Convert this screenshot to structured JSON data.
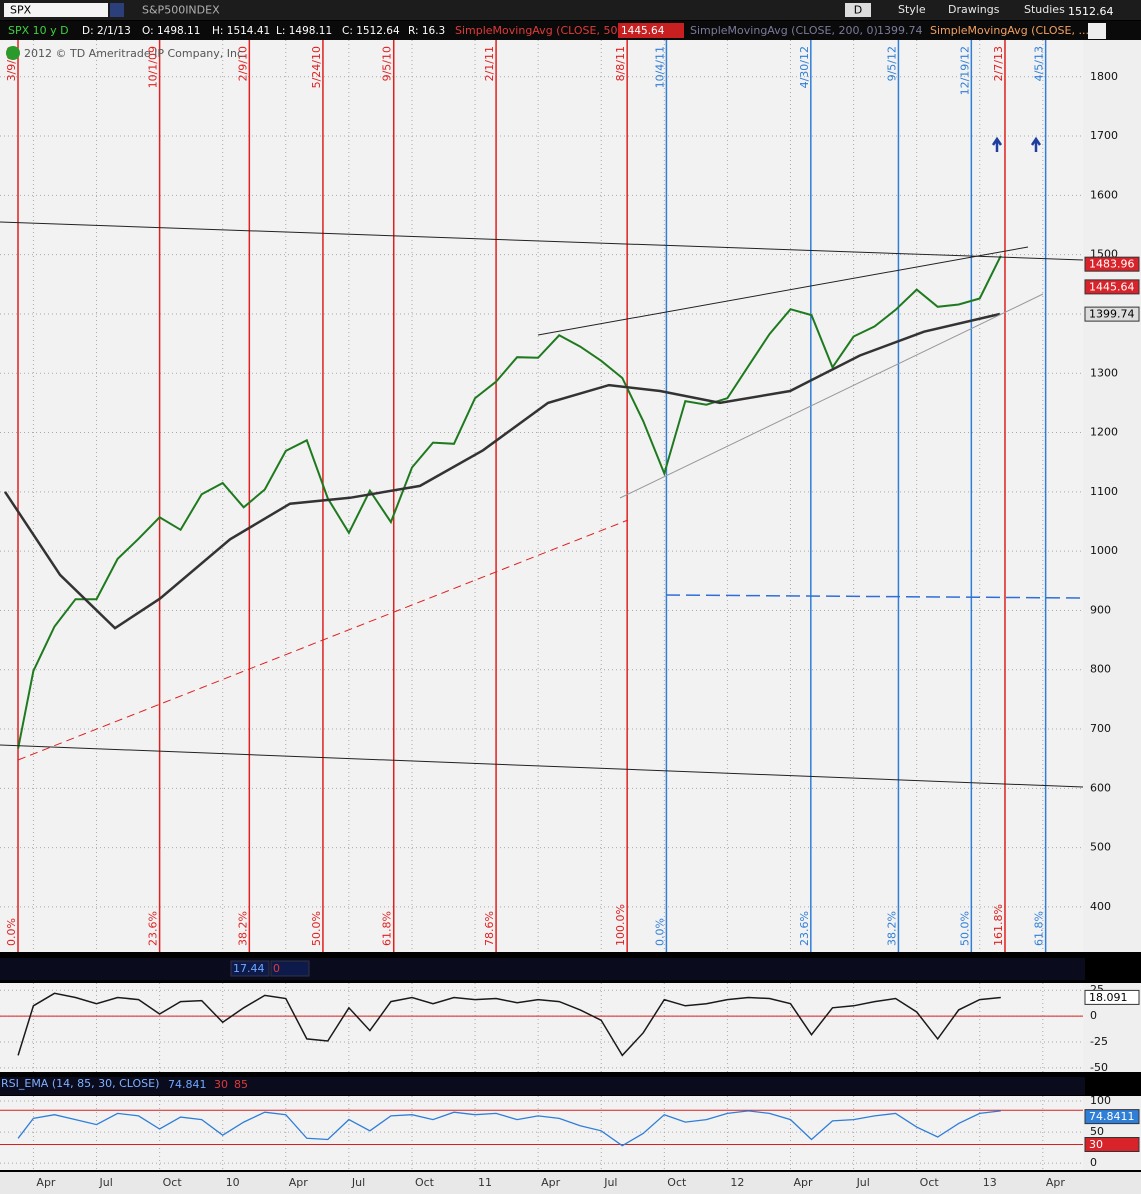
{
  "toolbar": {
    "symbol": "SPX",
    "description": "S&P500INDEX",
    "aggregation": "D",
    "style": "Style",
    "drawings": "Drawings",
    "studies": "Studies",
    "last": "1512.64"
  },
  "info_bar": {
    "chart": "SPX 10 y D",
    "date": "D: 2/1/13",
    "open": "O: 1498.11",
    "high": "H: 1514.41",
    "low": "L: 1498.11",
    "close": "C: 1512.64",
    "range": "R: 16.3",
    "studies": [
      {
        "name": "SimpleMovingAvg (CLOSE, 50, 0)",
        "value": "1445.64"
      },
      {
        "name": "SimpleMovingAvg (CLOSE, 200, 0)",
        "value": "1399.74"
      },
      {
        "name": "SimpleMovingAvg (CLOSE, ..."
      }
    ]
  },
  "copyright": "2012 © TD Ameritrade IP Company, Inc.",
  "time_axis": {
    "xlim": [
      1.41,
      52.91
    ],
    "xticks": [
      {
        "value": 3,
        "label": "Apr"
      },
      {
        "value": 6,
        "label": "Jul"
      },
      {
        "value": 9,
        "label": "Oct"
      },
      {
        "value": 12,
        "label": "10"
      },
      {
        "value": 15,
        "label": "Apr"
      },
      {
        "value": 18,
        "label": "Jul"
      },
      {
        "value": 21,
        "label": "Oct"
      },
      {
        "value": 24,
        "label": "11"
      },
      {
        "value": 27,
        "label": "Apr"
      },
      {
        "value": 30,
        "label": "Jul"
      },
      {
        "value": 33,
        "label": "Oct"
      },
      {
        "value": 36,
        "label": "12"
      },
      {
        "value": 39,
        "label": "Apr"
      },
      {
        "value": 42,
        "label": "Jul"
      },
      {
        "value": 45,
        "label": "Oct"
      },
      {
        "value": 48,
        "label": "13"
      },
      {
        "value": 51,
        "label": "Apr"
      }
    ],
    "x": [
      2.27,
      3,
      4,
      5,
      6,
      7,
      8,
      9,
      10,
      11,
      12,
      13,
      14,
      15,
      16,
      17,
      18,
      19,
      20,
      21,
      22,
      23,
      24,
      25,
      26,
      27,
      28,
      29,
      30,
      31,
      32,
      33,
      34,
      35,
      36,
      37,
      38,
      39,
      40,
      41,
      42,
      43,
      44,
      45,
      46,
      47,
      48,
      49
    ]
  },
  "price_panel": {
    "ylim": [
      324,
      1862
    ],
    "yticks": [
      400,
      500,
      600,
      700,
      800,
      900,
      1000,
      1100,
      1200,
      1300,
      1400,
      1500,
      1600,
      1700,
      1800
    ],
    "close": {
      "color": "#1f7a1f",
      "values": [
        667,
        798,
        873,
        919,
        919,
        987,
        1021,
        1057,
        1036,
        1096,
        1115,
        1074,
        1104,
        1169,
        1187,
        1089,
        1031,
        1102,
        1049,
        1141,
        1183,
        1181,
        1258,
        1286,
        1327,
        1326,
        1364,
        1345,
        1321,
        1292,
        1219,
        1131,
        1253,
        1247,
        1258,
        1312,
        1366,
        1408,
        1398,
        1310,
        1362,
        1379,
        1407,
        1441,
        1412,
        1416,
        1426,
        1498
      ]
    },
    "sma200": {
      "color": "#333333",
      "x": [
        1.65,
        4.27,
        6.88,
        9.02,
        12.35,
        15.2,
        18.05,
        21.38,
        24.38,
        27.47,
        30.37,
        32.8,
        35.65,
        38.98,
        42.3,
        45.35,
        48.96
      ],
      "values": [
        1100,
        960,
        870,
        920,
        1020,
        1080,
        1090,
        1110,
        1170,
        1250,
        1280,
        1270,
        1250,
        1270,
        1330,
        1370,
        1400
      ]
    },
    "price_tags": [
      {
        "value": 1483.96,
        "color": "#d8232a"
      },
      {
        "value": 1445.64,
        "color": "#d8232a"
      },
      {
        "value": 1399.74,
        "color": "#dddddd"
      }
    ],
    "markers": [
      {
        "date": "3/9/09",
        "fib": "0.0%",
        "color": "#e02020"
      },
      {
        "date": "10/1/09",
        "fib": "23.6%",
        "color": "#e02020"
      },
      {
        "date": "2/9/10",
        "fib": "38.2%",
        "color": "#e02020"
      },
      {
        "date": "5/24/10",
        "fib": "50.0%",
        "color": "#e02020"
      },
      {
        "date": "9/5/10",
        "fib": "61.8%",
        "color": "#e02020"
      },
      {
        "date": "2/1/11",
        "fib": "78.6%",
        "color": "#e02020"
      },
      {
        "date": "8/8/11",
        "fib": "100.0%",
        "color": "#e02020"
      },
      {
        "date": "10/4/11",
        "fib": "0.0%",
        "color": "#2f7ed8"
      },
      {
        "date": "4/30/12",
        "fib": "23.6%",
        "color": "#2f7ed8"
      },
      {
        "date": "9/5/12",
        "fib": "38.2%",
        "color": "#2f7ed8"
      },
      {
        "date": "12/19/12",
        "fib": "50.0%",
        "color": "#2f7ed8"
      },
      {
        "date": "2/7/13",
        "fib": "161.8%",
        "color": "#e02020"
      },
      {
        "date": "4/5/13",
        "fib": "61.8%",
        "color": "#2f7ed8"
      }
    ]
  },
  "oscillator_panel": {
    "header_values": [
      "17.44",
      "0"
    ],
    "ylim": [
      -54,
      32
    ],
    "yticks": [
      25,
      0,
      -25,
      -50
    ],
    "zero_line": 0,
    "series": {
      "color": "#1a1a1a",
      "values": [
        -38,
        10,
        22,
        18,
        12,
        18,
        16,
        2,
        14,
        15,
        -6,
        8,
        20,
        17,
        -22,
        -24,
        8,
        -14,
        14,
        18,
        12,
        18,
        16,
        17,
        13,
        16,
        14,
        6,
        -4,
        -38,
        -16,
        16,
        10,
        12,
        16,
        18,
        17,
        12,
        -18,
        8,
        10,
        14,
        17,
        4,
        -22,
        6,
        16,
        18
      ]
    },
    "tag": {
      "value": 18.091,
      "color": "#ffffff"
    }
  },
  "rsi_panel": {
    "title": "RSI_EMA (14, 85, 30, CLOSE)",
    "header_values": [
      "74.841",
      "30",
      "85"
    ],
    "ylim": [
      -11,
      108
    ],
    "yticks": [
      100,
      50,
      0
    ],
    "levels": [
      85,
      30
    ],
    "series": {
      "color": "#2f7ed8",
      "values": [
        40,
        72,
        78,
        70,
        62,
        80,
        76,
        55,
        74,
        70,
        45,
        66,
        82,
        78,
        40,
        38,
        70,
        52,
        76,
        78,
        70,
        82,
        78,
        80,
        70,
        76,
        72,
        60,
        52,
        28,
        48,
        78,
        66,
        70,
        80,
        84,
        80,
        70,
        38,
        68,
        70,
        76,
        80,
        58,
        42,
        64,
        80,
        84
      ]
    },
    "tags": [
      {
        "value": 74.8411,
        "color": "#2f7ed8"
      },
      {
        "value": 30,
        "color": "#d8232a"
      }
    ]
  }
}
